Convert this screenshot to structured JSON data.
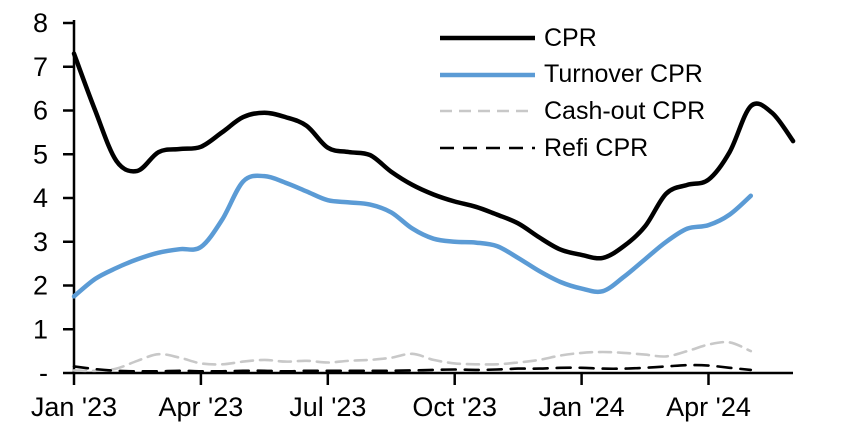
{
  "chart_data": {
    "type": "line",
    "x_axis": {
      "unit": "months_since_jan_2023",
      "range": [
        0,
        17
      ],
      "ticks": [
        {
          "pos": 0,
          "label": "Jan '23"
        },
        {
          "pos": 3,
          "label": "Apr '23"
        },
        {
          "pos": 6,
          "label": "Jul '23"
        },
        {
          "pos": 9,
          "label": "Oct '23"
        },
        {
          "pos": 12,
          "label": "Jan '24"
        },
        {
          "pos": 15,
          "label": "Apr '24"
        }
      ]
    },
    "y_axis": {
      "range": [
        0,
        8
      ],
      "ticks": [
        {
          "pos": 0,
          "label": "-"
        },
        {
          "pos": 1,
          "label": "1"
        },
        {
          "pos": 2,
          "label": "2"
        },
        {
          "pos": 3,
          "label": "3"
        },
        {
          "pos": 4,
          "label": "4"
        },
        {
          "pos": 5,
          "label": "5"
        },
        {
          "pos": 6,
          "label": "6"
        },
        {
          "pos": 7,
          "label": "7"
        },
        {
          "pos": 8,
          "label": "8"
        }
      ]
    },
    "grid": false,
    "legend_position": "inside-top-right",
    "series": [
      {
        "name": "CPR",
        "color": "#000000",
        "style": "solid",
        "width": 4.5,
        "dash": "",
        "points": [
          [
            0,
            7.3
          ],
          [
            0.5,
            6.0
          ],
          [
            1,
            4.85
          ],
          [
            1.5,
            4.62
          ],
          [
            2,
            5.05
          ],
          [
            2.5,
            5.12
          ],
          [
            3,
            5.17
          ],
          [
            3.5,
            5.5
          ],
          [
            4,
            5.85
          ],
          [
            4.5,
            5.95
          ],
          [
            5,
            5.85
          ],
          [
            5.5,
            5.65
          ],
          [
            6,
            5.15
          ],
          [
            6.5,
            5.05
          ],
          [
            7,
            4.98
          ],
          [
            7.5,
            4.6
          ],
          [
            8,
            4.3
          ],
          [
            8.5,
            4.08
          ],
          [
            9,
            3.92
          ],
          [
            9.5,
            3.8
          ],
          [
            10,
            3.62
          ],
          [
            10.5,
            3.42
          ],
          [
            11,
            3.1
          ],
          [
            11.5,
            2.82
          ],
          [
            12,
            2.7
          ],
          [
            12.5,
            2.63
          ],
          [
            13,
            2.9
          ],
          [
            13.5,
            3.35
          ],
          [
            14,
            4.1
          ],
          [
            14.5,
            4.3
          ],
          [
            15,
            4.42
          ],
          [
            15.5,
            5.05
          ],
          [
            16,
            6.1
          ],
          [
            16.5,
            5.95
          ],
          [
            17,
            5.3
          ]
        ]
      },
      {
        "name": "Turnover CPR",
        "color": "#5B9BD5",
        "style": "solid",
        "width": 4.5,
        "dash": "",
        "points": [
          [
            0,
            1.75
          ],
          [
            0.5,
            2.15
          ],
          [
            1,
            2.4
          ],
          [
            1.5,
            2.6
          ],
          [
            2,
            2.75
          ],
          [
            2.5,
            2.83
          ],
          [
            3,
            2.88
          ],
          [
            3.5,
            3.5
          ],
          [
            4,
            4.38
          ],
          [
            4.5,
            4.5
          ],
          [
            5,
            4.35
          ],
          [
            5.5,
            4.15
          ],
          [
            6,
            3.95
          ],
          [
            6.5,
            3.9
          ],
          [
            7,
            3.85
          ],
          [
            7.5,
            3.67
          ],
          [
            8,
            3.3
          ],
          [
            8.5,
            3.07
          ],
          [
            9,
            3.0
          ],
          [
            9.5,
            2.98
          ],
          [
            10,
            2.9
          ],
          [
            10.5,
            2.63
          ],
          [
            11,
            2.33
          ],
          [
            11.5,
            2.08
          ],
          [
            12,
            1.93
          ],
          [
            12.5,
            1.87
          ],
          [
            13,
            2.2
          ],
          [
            13.5,
            2.6
          ],
          [
            14,
            3.0
          ],
          [
            14.5,
            3.3
          ],
          [
            15,
            3.38
          ],
          [
            15.5,
            3.62
          ],
          [
            16,
            4.05
          ]
        ]
      },
      {
        "name": "Cash-out CPR",
        "color": "#C8C8C8",
        "style": "dashed",
        "width": 2.6,
        "dash": "12 7",
        "points": [
          [
            0,
            0.06
          ],
          [
            0.5,
            0.05
          ],
          [
            1,
            0.1
          ],
          [
            1.5,
            0.28
          ],
          [
            2,
            0.43
          ],
          [
            2.5,
            0.35
          ],
          [
            3,
            0.22
          ],
          [
            3.5,
            0.2
          ],
          [
            4,
            0.26
          ],
          [
            4.5,
            0.3
          ],
          [
            5,
            0.26
          ],
          [
            5.5,
            0.28
          ],
          [
            6,
            0.24
          ],
          [
            6.5,
            0.28
          ],
          [
            7,
            0.3
          ],
          [
            7.5,
            0.35
          ],
          [
            8,
            0.44
          ],
          [
            8.5,
            0.3
          ],
          [
            9,
            0.22
          ],
          [
            9.5,
            0.2
          ],
          [
            10,
            0.2
          ],
          [
            10.5,
            0.24
          ],
          [
            11,
            0.3
          ],
          [
            11.5,
            0.4
          ],
          [
            12,
            0.46
          ],
          [
            12.5,
            0.48
          ],
          [
            13,
            0.46
          ],
          [
            13.5,
            0.42
          ],
          [
            14,
            0.38
          ],
          [
            14.5,
            0.5
          ],
          [
            15,
            0.65
          ],
          [
            15.5,
            0.7
          ],
          [
            16,
            0.5
          ]
        ]
      },
      {
        "name": "Refi CPR",
        "color": "#000000",
        "style": "dashed",
        "width": 2.6,
        "dash": "14 9",
        "points": [
          [
            0,
            0.15
          ],
          [
            0.5,
            0.09
          ],
          [
            1,
            0.05
          ],
          [
            1.5,
            0.04
          ],
          [
            2,
            0.04
          ],
          [
            2.5,
            0.05
          ],
          [
            3,
            0.04
          ],
          [
            3.5,
            0.04
          ],
          [
            4,
            0.05
          ],
          [
            4.5,
            0.05
          ],
          [
            5,
            0.04
          ],
          [
            5.5,
            0.05
          ],
          [
            6,
            0.05
          ],
          [
            6.5,
            0.05
          ],
          [
            7,
            0.05
          ],
          [
            7.5,
            0.05
          ],
          [
            8,
            0.06
          ],
          [
            8.5,
            0.07
          ],
          [
            9,
            0.08
          ],
          [
            9.5,
            0.07
          ],
          [
            10,
            0.08
          ],
          [
            10.5,
            0.1
          ],
          [
            11,
            0.1
          ],
          [
            11.5,
            0.12
          ],
          [
            12,
            0.12
          ],
          [
            12.5,
            0.1
          ],
          [
            13,
            0.1
          ],
          [
            13.5,
            0.12
          ],
          [
            14,
            0.15
          ],
          [
            14.5,
            0.18
          ],
          [
            15,
            0.17
          ],
          [
            15.5,
            0.12
          ],
          [
            16,
            0.07
          ]
        ]
      }
    ]
  }
}
